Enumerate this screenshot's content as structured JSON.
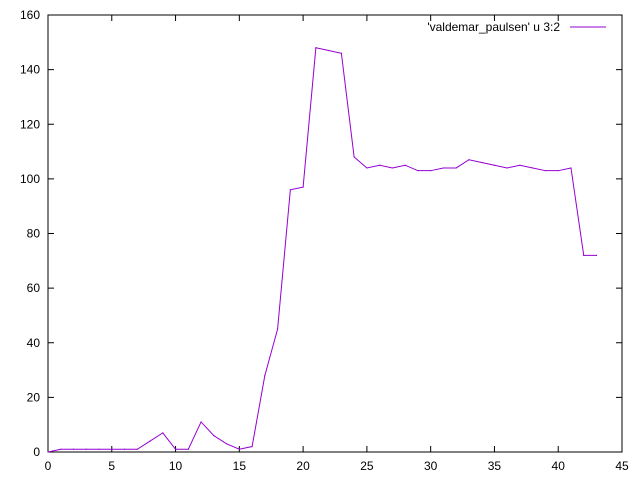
{
  "chart_data": {
    "type": "line",
    "title": "",
    "xlabel": "",
    "ylabel": "",
    "xlim": [
      0,
      45
    ],
    "ylim": [
      0,
      160
    ],
    "xticks": [
      0,
      5,
      10,
      15,
      20,
      25,
      30,
      35,
      40,
      45
    ],
    "yticks": [
      0,
      20,
      40,
      60,
      80,
      100,
      120,
      140,
      160
    ],
    "grid": false,
    "legend_position": "top-right",
    "series": [
      {
        "name": "'valdemar_paulsen' u 3:2",
        "color": "#9400d3",
        "x": [
          0,
          1,
          2,
          3,
          4,
          5,
          6,
          7,
          8,
          9,
          10,
          11,
          12,
          13,
          14,
          15,
          16,
          17,
          18,
          19,
          20,
          21,
          22,
          23,
          24,
          25,
          26,
          27,
          28,
          29,
          30,
          31,
          32,
          33,
          34,
          35,
          36,
          37,
          38,
          39,
          40,
          41,
          42,
          43
        ],
        "y": [
          0,
          1,
          1,
          1,
          1,
          1,
          1,
          1,
          4,
          7,
          1,
          1,
          11,
          6,
          3,
          1,
          2,
          28,
          45,
          96,
          97,
          148,
          147,
          146,
          108,
          104,
          105,
          104,
          105,
          103,
          103,
          104,
          104,
          107,
          106,
          105,
          104,
          105,
          104,
          103,
          103,
          104,
          72,
          72
        ]
      }
    ]
  }
}
